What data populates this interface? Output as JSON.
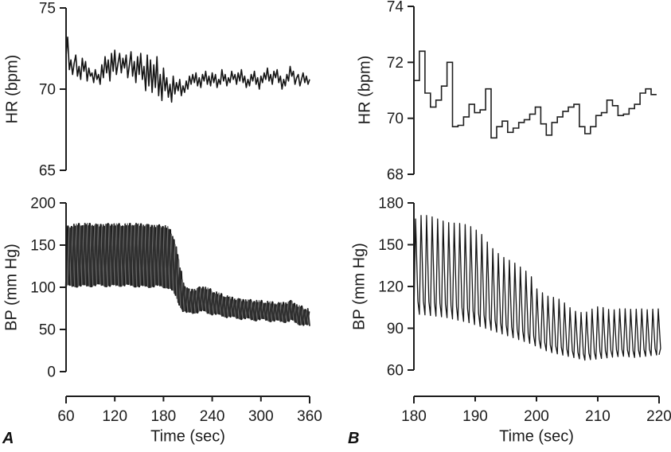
{
  "figure": {
    "panels": {
      "a": "A",
      "b": "B"
    },
    "ink_color": "#1c1c1c",
    "background": "#ffffff"
  },
  "chart_data": [
    {
      "id": "hr_a",
      "panel": "A",
      "type": "line",
      "ylabel": "HR (bpm)",
      "xlabel": "Time (sec)",
      "xlim": [
        60,
        360
      ],
      "ylim": [
        65,
        75
      ],
      "xticks": [
        60,
        120,
        180,
        240,
        300,
        360
      ],
      "yticks": [
        65,
        70,
        75
      ],
      "grid": false,
      "x_start": 60,
      "x_step": 2,
      "values": [
        72.0,
        73.2,
        71.2,
        71.8,
        70.9,
        71.6,
        72.1,
        70.8,
        71.4,
        70.6,
        71.9,
        71.1,
        71.7,
        70.5,
        71.3,
        70.8,
        71.0,
        70.4,
        71.2,
        70.6,
        70.9,
        70.3,
        71.5,
        70.7,
        72.0,
        71.0,
        71.8,
        70.5,
        72.2,
        71.1,
        72.4,
        70.9,
        71.6,
        72.2,
        71.0,
        71.9,
        71.3,
        72.1,
        70.7,
        71.5,
        72.3,
        70.8,
        71.7,
        70.4,
        72.0,
        70.9,
        72.2,
        70.6,
        71.4,
        69.9,
        72.1,
        70.2,
        71.8,
        69.8,
        71.5,
        70.1,
        72.0,
        69.6,
        70.9,
        69.3,
        71.3,
        69.9,
        70.7,
        69.5,
        70.3,
        69.2,
        70.8,
        69.7,
        70.4,
        69.9,
        70.6,
        69.6,
        70.2,
        69.8,
        70.5,
        70.0,
        70.8,
        70.3,
        70.9,
        70.4,
        71.0,
        70.2,
        70.7,
        70.1,
        70.9,
        70.5,
        71.1,
        70.3,
        70.8,
        70.2,
        71.0,
        70.4,
        70.9,
        70.1,
        70.6,
        70.3,
        71.2,
        70.5,
        70.9,
        70.2,
        70.7,
        70.4,
        71.1,
        70.6,
        70.9,
        70.3,
        71.0,
        70.5,
        71.2,
        70.4,
        70.8,
        70.1,
        70.6,
        70.2,
        70.9,
        70.5,
        71.1,
        70.3,
        70.7,
        70.0,
        70.8,
        70.4,
        71.0,
        70.6,
        71.3,
        70.5,
        70.9,
        70.3,
        71.1,
        70.7,
        71.2,
        70.4,
        70.8,
        70.0,
        70.6,
        70.2,
        70.9,
        70.5,
        71.4,
        70.8,
        71.1,
        70.3,
        70.7,
        70.9,
        70.2,
        70.6,
        71.0,
        70.4,
        70.8,
        70.3,
        70.6
      ]
    },
    {
      "id": "bp_a",
      "panel": "A",
      "type": "pulse-band",
      "ylabel": "BP (mm Hg)",
      "xlabel": "Time (sec)",
      "xlim": [
        60,
        360
      ],
      "ylim": [
        0,
        200
      ],
      "xticks": [
        60,
        120,
        180,
        240,
        300,
        360
      ],
      "yticks": [
        0,
        50,
        100,
        150,
        200
      ],
      "grid": false,
      "pulse_period_sec": 4.5,
      "envelope_note": "columns: time_sec, systolic, diastolic",
      "envelope": [
        [
          60,
          170,
          101
        ],
        [
          70,
          173,
          102
        ],
        [
          85,
          174,
          102
        ],
        [
          100,
          173,
          103
        ],
        [
          115,
          174,
          102
        ],
        [
          130,
          173,
          103
        ],
        [
          145,
          174,
          102
        ],
        [
          160,
          173,
          101
        ],
        [
          170,
          172,
          102
        ],
        [
          180,
          172,
          101
        ],
        [
          186,
          170,
          100
        ],
        [
          192,
          160,
          95
        ],
        [
          196,
          145,
          88
        ],
        [
          200,
          125,
          79
        ],
        [
          204,
          107,
          73
        ],
        [
          208,
          98,
          70
        ],
        [
          214,
          96,
          70
        ],
        [
          220,
          97,
          71
        ],
        [
          228,
          100,
          72
        ],
        [
          236,
          97,
          70
        ],
        [
          244,
          93,
          68
        ],
        [
          252,
          90,
          67
        ],
        [
          262,
          87,
          65
        ],
        [
          272,
          85,
          64
        ],
        [
          282,
          84,
          63
        ],
        [
          292,
          83,
          62
        ],
        [
          302,
          82,
          62
        ],
        [
          312,
          81,
          61
        ],
        [
          322,
          80,
          60
        ],
        [
          332,
          81,
          60
        ],
        [
          338,
          83,
          61
        ],
        [
          344,
          78,
          58
        ],
        [
          352,
          75,
          56
        ],
        [
          360,
          72,
          54
        ]
      ]
    },
    {
      "id": "hr_b",
      "panel": "B",
      "type": "step",
      "ylabel": "HR (bpm)",
      "xlabel": "Time (sec)",
      "xlim": [
        180,
        220
      ],
      "ylim": [
        68,
        74
      ],
      "xticks": [
        180,
        190,
        200,
        210,
        220
      ],
      "yticks": [
        68,
        70,
        72,
        74
      ],
      "grid": false,
      "x_start": 180,
      "step_sec": 0.9,
      "values": [
        71.35,
        72.4,
        70.9,
        70.4,
        70.65,
        71.15,
        72.0,
        69.7,
        69.75,
        70.05,
        70.5,
        70.2,
        70.3,
        71.05,
        69.3,
        69.7,
        69.9,
        69.5,
        69.65,
        69.85,
        69.95,
        70.15,
        70.4,
        69.8,
        69.4,
        69.85,
        70.05,
        70.25,
        70.4,
        70.5,
        69.7,
        69.45,
        69.7,
        70.1,
        70.2,
        70.65,
        70.45,
        70.1,
        70.15,
        70.35,
        70.5,
        70.9,
        71.05,
        70.85
      ]
    },
    {
      "id": "bp_b",
      "panel": "B",
      "type": "pulse",
      "ylabel": "BP (mm Hg)",
      "xlabel": "Time (sec)",
      "xlim": [
        180,
        220
      ],
      "ylim": [
        60,
        180
      ],
      "xticks": [
        180,
        190,
        200,
        210,
        220
      ],
      "yticks": [
        60,
        90,
        120,
        150,
        180
      ],
      "grid": false,
      "pulse_period_sec": 0.9,
      "envelope_note": "columns: time_sec, systolic, diastolic",
      "envelope": [
        [
          180,
          168,
          100
        ],
        [
          181,
          170,
          100
        ],
        [
          183,
          169,
          99
        ],
        [
          185,
          168,
          98
        ],
        [
          187,
          166,
          96
        ],
        [
          189,
          162,
          94
        ],
        [
          191,
          158,
          91
        ],
        [
          193,
          148,
          88
        ],
        [
          195,
          139,
          85
        ],
        [
          197,
          134,
          82
        ],
        [
          199,
          130,
          79
        ],
        [
          200,
          120,
          77
        ],
        [
          202,
          112,
          73
        ],
        [
          204,
          109,
          71
        ],
        [
          206,
          104,
          69
        ],
        [
          208,
          102,
          67
        ],
        [
          210,
          104,
          68
        ],
        [
          212,
          103,
          69
        ],
        [
          214,
          106,
          70
        ],
        [
          216,
          103,
          69
        ],
        [
          218,
          102,
          70
        ],
        [
          220,
          105,
          71
        ]
      ]
    }
  ]
}
